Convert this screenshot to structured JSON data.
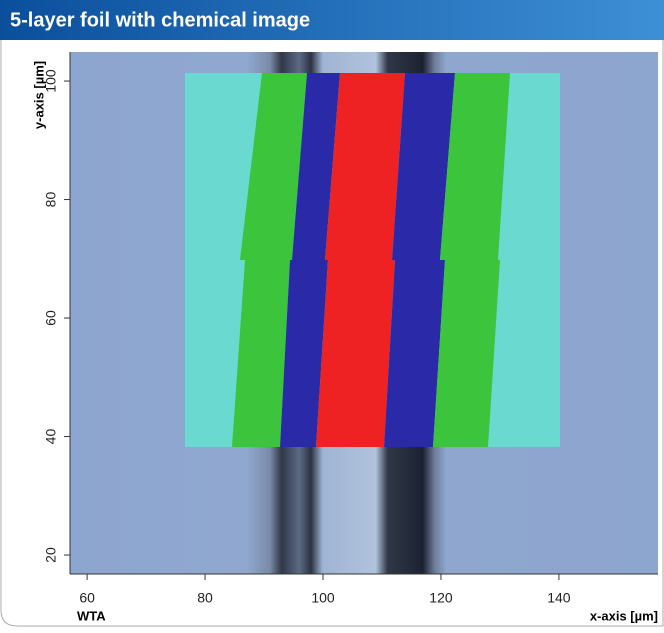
{
  "chart_data": {
    "type": "image",
    "title": "5-layer foil with chemical image",
    "xlabel": "x-axis [µm]",
    "ylabel": "y-axis [µm]",
    "annotation": "WTA",
    "xlim": [
      57.1,
      156.8
    ],
    "xticks": [
      60,
      80,
      100,
      120,
      140
    ],
    "ylim": [
      16.8,
      104.9
    ],
    "yticks": [
      20,
      40,
      60,
      80,
      100
    ]
  }
}
